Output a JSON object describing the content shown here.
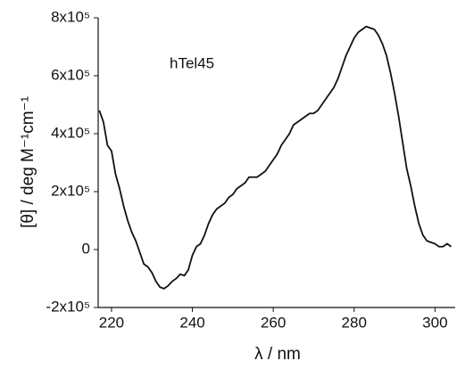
{
  "chart_data": {
    "type": "line",
    "annotation": "hTel45",
    "x_label": "λ / nm",
    "y_label": "[θ] / deg M⁻¹cm⁻¹",
    "xlim": [
      216.7,
      305.0
    ],
    "ylim": [
      -200000.0,
      800000.0
    ],
    "xticks": [
      220,
      240,
      260,
      280,
      300
    ],
    "yticks": [
      {
        "value": -200000.0,
        "label": "-2x10⁵"
      },
      {
        "value": 0,
        "label": "0"
      },
      {
        "value": 200000.0,
        "label": "2x10⁵"
      },
      {
        "value": 400000.0,
        "label": "4x10⁵"
      },
      {
        "value": 600000.0,
        "label": "6x10⁵"
      },
      {
        "value": 800000.0,
        "label": "8x10⁵"
      }
    ],
    "series": [
      {
        "color": "#111111",
        "x": [
          217,
          218,
          219,
          220,
          221,
          222,
          223,
          224,
          225,
          226,
          227,
          228,
          229,
          230,
          231,
          232,
          233,
          234,
          235,
          236,
          237,
          238,
          239,
          240,
          241,
          242,
          243,
          244,
          245,
          246,
          247,
          248,
          249,
          250,
          251,
          252,
          253,
          254,
          255,
          256,
          257,
          258,
          259,
          260,
          261,
          262,
          263,
          264,
          265,
          266,
          267,
          268,
          269,
          270,
          271,
          272,
          273,
          274,
          275,
          276,
          277,
          278,
          279,
          280,
          281,
          282,
          283,
          284,
          285,
          286,
          287,
          288,
          289,
          290,
          291,
          292,
          293,
          294,
          295,
          296,
          297,
          298,
          299,
          300,
          301,
          302,
          303,
          304
        ],
        "values": [
          480000.0,
          440000.0,
          360000.0,
          340000.0,
          260000.0,
          210000.0,
          150000.0,
          100000.0,
          60000.0,
          30000.0,
          -10000.0,
          -50000.0,
          -60000.0,
          -80000.0,
          -110000.0,
          -130000.0,
          -135000.0,
          -125000.0,
          -110000.0,
          -100000.0,
          -85000.0,
          -90000.0,
          -70000.0,
          -20000.0,
          10000.0,
          20000.0,
          50000.0,
          90000.0,
          120000.0,
          140000.0,
          150000.0,
          160000.0,
          180000.0,
          190000.0,
          210000.0,
          220000.0,
          230000.0,
          250000.0,
          250000.0,
          250000.0,
          260000.0,
          270000.0,
          290000.0,
          310000.0,
          330000.0,
          360000.0,
          380000.0,
          400000.0,
          430000.0,
          440000.0,
          450000.0,
          460000.0,
          470000.0,
          470000.0,
          480000.0,
          500000.0,
          520000.0,
          540000.0,
          560000.0,
          590000.0,
          630000.0,
          670000.0,
          700000.0,
          730000.0,
          750000.0,
          760000.0,
          770000.0,
          765000.0,
          760000.0,
          740000.0,
          710000.0,
          670000.0,
          610000.0,
          540000.0,
          460000.0,
          370000.0,
          280000.0,
          220000.0,
          150000.0,
          90000.0,
          50000.0,
          30000.0,
          25000.0,
          20000.0,
          10000.0,
          10000.0,
          20000.0,
          10000.0
        ]
      }
    ]
  }
}
